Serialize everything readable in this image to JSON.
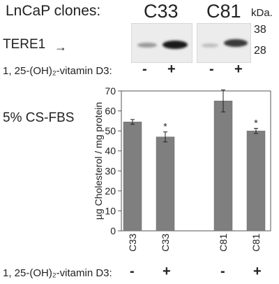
{
  "blot": {
    "clones_label": "LnCaP clones:",
    "clone_names": [
      "C33",
      "C81"
    ],
    "kda_label": "kDa.",
    "markers": [
      "38",
      "28"
    ],
    "protein_label": "TERE1",
    "arrow": "→",
    "treatment_label": "1, 25-(OH)₂-vitamin D3:",
    "signs": [
      "-",
      "+",
      "-",
      "+"
    ]
  },
  "condition_label": "5% CS-FBS",
  "chart_data": {
    "type": "bar",
    "ylabel": "µg Cholesterol / mg protein",
    "ylim": [
      0,
      70
    ],
    "yticks": [
      0,
      10,
      20,
      30,
      40,
      50,
      60,
      70
    ],
    "categories": [
      "C33",
      "C33",
      "C81",
      "C81"
    ],
    "values": [
      54.5,
      47,
      65,
      50
    ],
    "errors": [
      1.2,
      2.5,
      5.5,
      1.3
    ],
    "significance": [
      "",
      "*",
      "",
      "*"
    ],
    "bar_color": "#7f7f7f",
    "grid": false
  },
  "bottom": {
    "treatment_label": "1, 25-(OH)₂-vitamin D3:",
    "signs": [
      "-",
      "+",
      "-",
      "+"
    ]
  }
}
